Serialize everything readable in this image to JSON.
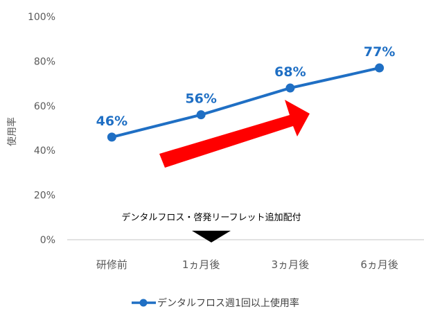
{
  "chart_data": {
    "type": "line",
    "categories": [
      "研修前",
      "1ヵ月後",
      "3ヵ月後",
      "6ヵ月後"
    ],
    "series": [
      {
        "name": "デンタルフロス週1回以上使用率",
        "values": [
          46,
          56,
          68,
          77
        ],
        "data_labels": [
          "46%",
          "56%",
          "68%",
          "77%"
        ]
      }
    ],
    "ylabel": "使用率",
    "ylim": [
      0,
      100
    ],
    "yticks": [
      0,
      20,
      40,
      60,
      80,
      100
    ],
    "ytick_labels": [
      "0%",
      "20%",
      "40%",
      "60%",
      "80%",
      "100%"
    ],
    "grid": false,
    "legend_position": "bottom",
    "annotation": {
      "text": "デンタルフロス・啓発リーフレット追加配付",
      "category": "1ヵ月後"
    },
    "trend_arrow": "up-right"
  },
  "colors": {
    "series": "#1f6fc4",
    "arrow": "#ff0000",
    "axis": "#d9d9d9",
    "text": "#595959"
  }
}
